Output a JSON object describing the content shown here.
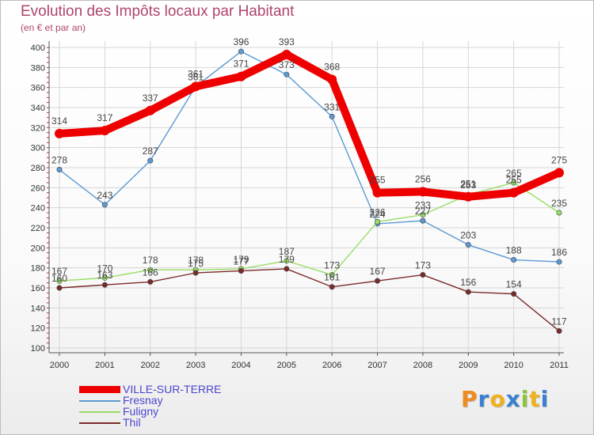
{
  "colors": {
    "accent": "#b0446e",
    "legend_text": "#4a46d0"
  },
  "chart_data": {
    "type": "line",
    "title": "Evolution des Impôts locaux par Habitant",
    "subtitle": "(en € et par an)",
    "xlabel": "",
    "ylabel": "",
    "categories": [
      "2000",
      "2001",
      "2002",
      "2003",
      "2004",
      "2005",
      "2006",
      "2007",
      "2008",
      "2009",
      "2010",
      "2011"
    ],
    "ylim": [
      100,
      400
    ],
    "yticks": [
      100,
      120,
      140,
      160,
      180,
      200,
      220,
      240,
      260,
      280,
      300,
      320,
      340,
      360,
      380,
      400
    ],
    "legend_position": "bottom-left",
    "series": [
      {
        "name": "VILLE-SUR-TERRE",
        "color": "#ee0000",
        "emphasis": true,
        "values": [
          314,
          317,
          337,
          361,
          371,
          393,
          368,
          255,
          256,
          251,
          255,
          275
        ],
        "labels": [
          "314",
          "317",
          "337",
          "361",
          "371",
          "393",
          "368",
          "255",
          "256",
          "251",
          "255",
          "275"
        ]
      },
      {
        "name": "Fresnay",
        "color": "#5b9ad3",
        "emphasis": false,
        "values": [
          278,
          243,
          287,
          361,
          396,
          373,
          331,
          224,
          227,
          203,
          188,
          186
        ],
        "labels": [
          "278",
          "243",
          "287",
          "361",
          "396",
          "373",
          "331",
          "224",
          "227",
          "203",
          "188",
          "186"
        ]
      },
      {
        "name": "Fuligny",
        "color": "#99dd66",
        "emphasis": false,
        "values": [
          167,
          170,
          178,
          178,
          179,
          187,
          173,
          226,
          233,
          253,
          265,
          235
        ],
        "labels": [
          "167",
          "170",
          "178",
          "178",
          "179",
          "187",
          "173",
          "226",
          "233",
          "253",
          "265",
          "235"
        ]
      },
      {
        "name": "Thil",
        "color": "#7a2a2a",
        "emphasis": false,
        "values": [
          160,
          163,
          166,
          175,
          177,
          179,
          161,
          167,
          173,
          156,
          154,
          117
        ],
        "labels": [
          "160",
          "163",
          "166",
          "175",
          "177",
          "179",
          "161",
          "167",
          "173",
          "156",
          "154",
          "117"
        ]
      }
    ]
  },
  "brand": {
    "logo_letters": [
      "P",
      "r",
      "o",
      "x",
      "i",
      "t",
      "i"
    ]
  }
}
